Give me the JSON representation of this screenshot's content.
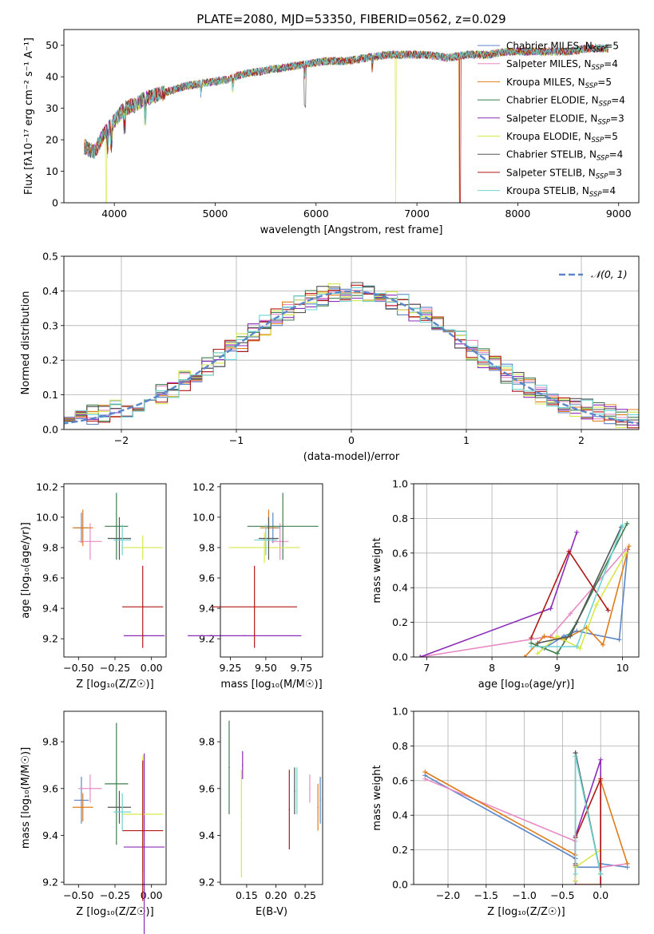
{
  "figure_title": "PLATE=2080, MJD=53350, FIBERID=0562, z=0.029",
  "colors": {
    "Chabrier MILES": "#5b86c8",
    "Salpeter MILES": "#e88bc4",
    "Kroupa MILES": "#e07b1a",
    "Chabrier ELODIE": "#3e7d4e",
    "Salpeter ELODIE": "#8b2cb8",
    "Kroupa ELODIE": "#d8e84a",
    "Chabrier STELIB": "#555555",
    "Salpeter STELIB": "#b01818",
    "Kroupa STELIB": "#6fd3d3"
  },
  "chart_data": [
    {
      "id": "spectrum",
      "type": "line",
      "title": "PLATE=2080, MJD=53350, FIBERID=0562, z=0.029",
      "xlabel": "wavelength [Angstrom, rest frame]",
      "ylabel": "Flux [fλ10⁻¹⁷ erg cm⁻² s⁻¹ A⁻¹]",
      "xlim": [
        3500,
        9200
      ],
      "ylim": [
        0,
        55
      ],
      "xticks": [
        4000,
        5000,
        6000,
        7000,
        8000,
        9000
      ],
      "yticks": [
        0,
        10,
        20,
        30,
        40,
        50
      ],
      "grid": false,
      "legend_position": "top-right",
      "legend": [
        {
          "name": "Chabrier MILES",
          "nssp": "5"
        },
        {
          "name": "Salpeter MILES",
          "nssp": "4"
        },
        {
          "name": "Kroupa MILES",
          "nssp": "5"
        },
        {
          "name": "Chabrier ELODIE",
          "nssp": "4"
        },
        {
          "name": "Salpeter ELODIE",
          "nssp": "3"
        },
        {
          "name": "Kroupa ELODIE",
          "nssp": "5"
        },
        {
          "name": "Chabrier STELIB",
          "nssp": "4"
        },
        {
          "name": "Salpeter STELIB",
          "nssp": "3"
        },
        {
          "name": "Kroupa STELIB",
          "nssp": "4"
        }
      ],
      "x": [
        3700,
        3800,
        3900,
        4000,
        4100,
        4200,
        4300,
        4500,
        4700,
        4900,
        5100,
        5300,
        5500,
        5700,
        5900,
        6100,
        6300,
        6500,
        6700,
        6900,
        7100,
        7300,
        7500,
        7700,
        7900,
        8100,
        8300,
        8500,
        8700,
        8900
      ],
      "y": [
        18,
        16,
        22,
        26,
        30,
        31,
        33,
        35,
        37,
        38,
        39,
        41,
        42,
        43,
        44,
        45,
        45,
        46,
        47,
        47,
        47,
        46,
        47,
        47,
        48,
        48,
        48,
        48,
        49,
        49
      ],
      "dips": [
        {
          "series": "Kroupa ELODIE",
          "x": 3920
        },
        {
          "series": "Kroupa ELODIE",
          "x": 6790
        },
        {
          "series": "Kroupa MILES",
          "x": 7420
        },
        {
          "series": "Salpeter STELIB",
          "x": 7430
        }
      ]
    },
    {
      "id": "residuals",
      "type": "histogram",
      "xlabel": "(data-model)/error",
      "ylabel": "Normed distribution",
      "xlim": [
        -2.5,
        2.5
      ],
      "ylim": [
        0,
        0.5
      ],
      "xticks": [
        -2,
        -1,
        0,
        1,
        2
      ],
      "yticks": [
        0.0,
        0.1,
        0.2,
        0.3,
        0.4,
        0.5
      ],
      "grid": true,
      "legend_position": "top-right",
      "reference_label": "𝒩(0, 1)",
      "bin_width": 0.1
    },
    {
      "id": "age-vs-Z",
      "type": "scatter",
      "xlabel": "Z [log₁₀(Z/Z☉)]",
      "ylabel": "age  [log₁₀(age/yr)]",
      "xlim": [
        -0.6,
        0.1
      ],
      "ylim": [
        9.08,
        10.22
      ],
      "xticks": [
        -0.5,
        -0.25,
        0.0
      ],
      "yticks": [
        9.2,
        9.4,
        9.6,
        9.8,
        10.0,
        10.2
      ],
      "grid": false,
      "points": [
        {
          "series": "Chabrier MILES",
          "x": -0.48,
          "xerr": 0.05,
          "y": 9.93,
          "yerr": 0.1
        },
        {
          "series": "Salpeter MILES",
          "x": -0.42,
          "xerr": 0.08,
          "y": 9.84,
          "yerr": 0.12
        },
        {
          "series": "Kroupa MILES",
          "x": -0.47,
          "xerr": 0.07,
          "y": 9.93,
          "yerr": 0.12
        },
        {
          "series": "Chabrier ELODIE",
          "x": -0.24,
          "xerr": 0.08,
          "y": 9.94,
          "yerr": 0.22
        },
        {
          "series": "Salpeter ELODIE",
          "x": -0.05,
          "xerr": 0.14,
          "y": 9.22,
          "yerr": 0.0
        },
        {
          "series": "Kroupa ELODIE",
          "x": -0.06,
          "xerr": 0.14,
          "y": 9.8,
          "yerr": 0.08
        },
        {
          "series": "Chabrier STELIB",
          "x": -0.22,
          "xerr": 0.08,
          "y": 9.86,
          "yerr": 0.14
        },
        {
          "series": "Salpeter STELIB",
          "x": -0.06,
          "xerr": 0.14,
          "y": 9.41,
          "yerr": 0.27
        },
        {
          "series": "Kroupa STELIB",
          "x": -0.2,
          "xerr": 0.06,
          "y": 9.85,
          "yerr": 0.1
        }
      ]
    },
    {
      "id": "age-vs-mass",
      "type": "scatter",
      "xlabel": "mass [log₁₀(M/M☉)]",
      "ylabel": "",
      "xlim": [
        9.18,
        9.9
      ],
      "ylim": [
        9.08,
        10.22
      ],
      "xticks": [
        9.25,
        9.5,
        9.75
      ],
      "yticks": [
        9.2,
        9.4,
        9.6,
        9.8,
        10.0,
        10.2
      ],
      "grid": false,
      "points": [
        {
          "series": "Chabrier MILES",
          "x": 9.55,
          "xerr": 0.05,
          "y": 9.93,
          "yerr": 0.1
        },
        {
          "series": "Salpeter MILES",
          "x": 9.6,
          "xerr": 0.06,
          "y": 9.84,
          "yerr": 0.12
        },
        {
          "series": "Kroupa MILES",
          "x": 9.52,
          "xerr": 0.06,
          "y": 9.93,
          "yerr": 0.12
        },
        {
          "series": "Chabrier ELODIE",
          "x": 9.62,
          "xerr": 0.25,
          "y": 9.94,
          "yerr": 0.22
        },
        {
          "series": "Salpeter ELODIE",
          "x": 9.35,
          "xerr": 0.4,
          "y": 9.22,
          "yerr": 0.0
        },
        {
          "series": "Kroupa ELODIE",
          "x": 9.49,
          "xerr": 0.25,
          "y": 9.8,
          "yerr": 0.1
        },
        {
          "series": "Chabrier STELIB",
          "x": 9.52,
          "xerr": 0.07,
          "y": 9.86,
          "yerr": 0.14
        },
        {
          "series": "Salpeter STELIB",
          "x": 9.42,
          "xerr": 0.3,
          "y": 9.41,
          "yerr": 0.27
        },
        {
          "series": "Kroupa STELIB",
          "x": 9.5,
          "xerr": 0.08,
          "y": 9.85,
          "yerr": 0.1
        }
      ]
    },
    {
      "id": "weight-vs-age",
      "type": "line",
      "xlabel": "age  [log₁₀(age/yr)]",
      "ylabel": "mass weight",
      "xlim": [
        6.8,
        10.25
      ],
      "ylim": [
        0,
        1
      ],
      "xticks": [
        7,
        8,
        9,
        10
      ],
      "yticks": [
        0.0,
        0.2,
        0.4,
        0.6,
        0.8,
        1.0
      ],
      "grid": true,
      "series": [
        {
          "series": "Chabrier MILES",
          "x": [
            8.8,
            9.1,
            9.3,
            9.95,
            10.08
          ],
          "y": [
            0.05,
            0.12,
            0.15,
            0.1,
            0.62
          ]
        },
        {
          "series": "Salpeter MILES",
          "x": [
            6.9,
            8.9,
            9.2,
            10.05
          ],
          "y": [
            0.0,
            0.12,
            0.25,
            0.62
          ]
        },
        {
          "series": "Kroupa MILES",
          "x": [
            8.5,
            8.8,
            9.1,
            9.45,
            9.7,
            10.1
          ],
          "y": [
            0.0,
            0.12,
            0.1,
            0.17,
            0.07,
            0.64
          ]
        },
        {
          "series": "Chabrier ELODIE",
          "x": [
            8.6,
            9.0,
            9.3,
            10.07
          ],
          "y": [
            0.08,
            0.02,
            0.2,
            0.77
          ]
        },
        {
          "series": "Salpeter ELODIE",
          "x": [
            6.9,
            8.9,
            9.3
          ],
          "y": [
            0.0,
            0.28,
            0.72
          ]
        },
        {
          "series": "Kroupa ELODIE",
          "x": [
            8.7,
            9.0,
            9.35,
            9.6,
            10.05
          ],
          "y": [
            0.02,
            0.12,
            0.05,
            0.3,
            0.6
          ]
        },
        {
          "series": "Chabrier STELIB",
          "x": [
            8.7,
            9.2,
            9.98
          ],
          "y": [
            0.08,
            0.12,
            0.75
          ]
        },
        {
          "series": "Salpeter STELIB",
          "x": [
            8.6,
            9.18,
            9.78
          ],
          "y": [
            0.11,
            0.61,
            0.27
          ]
        },
        {
          "series": "Kroupa STELIB",
          "x": [
            8.6,
            9.3,
            10.0
          ],
          "y": [
            0.06,
            0.06,
            0.76
          ]
        }
      ]
    },
    {
      "id": "mass-vs-Z",
      "type": "scatter",
      "xlabel": "Z [log₁₀(Z/Z☉)]",
      "ylabel": "mass [log₁₀(M/M☉)]",
      "xlim": [
        -0.6,
        0.1
      ],
      "ylim": [
        9.19,
        9.93
      ],
      "xticks": [
        -0.5,
        -0.25,
        0.0
      ],
      "yticks": [
        9.2,
        9.4,
        9.6,
        9.8
      ],
      "grid": false,
      "points": [
        {
          "series": "Chabrier MILES",
          "x": -0.48,
          "xerr": 0.05,
          "y": 9.55,
          "yerr": 0.1
        },
        {
          "series": "Salpeter MILES",
          "x": -0.42,
          "xerr": 0.08,
          "y": 9.6,
          "yerr": 0.06
        },
        {
          "series": "Kroupa MILES",
          "x": -0.47,
          "xerr": 0.07,
          "y": 9.52,
          "yerr": 0.06
        },
        {
          "series": "Chabrier ELODIE",
          "x": -0.24,
          "xerr": 0.08,
          "y": 9.62,
          "yerr": 0.26
        },
        {
          "series": "Salpeter ELODIE",
          "x": -0.05,
          "xerr": 0.14,
          "y": 9.35,
          "yerr": 0.4
        },
        {
          "series": "Kroupa ELODIE",
          "x": -0.06,
          "xerr": 0.14,
          "y": 9.49,
          "yerr": 0.25
        },
        {
          "series": "Chabrier STELIB",
          "x": -0.22,
          "xerr": 0.08,
          "y": 9.52,
          "yerr": 0.07
        },
        {
          "series": "Salpeter STELIB",
          "x": -0.06,
          "xerr": 0.14,
          "y": 9.42,
          "yerr": 0.3
        },
        {
          "series": "Kroupa STELIB",
          "x": -0.2,
          "xerr": 0.06,
          "y": 9.5,
          "yerr": 0.08
        }
      ]
    },
    {
      "id": "mass-vs-ebv",
      "type": "scatter",
      "xlabel": "E(B-V)",
      "ylabel": "",
      "xlim": [
        0.105,
        0.28
      ],
      "ylim": [
        9.19,
        9.93
      ],
      "xticks": [
        0.15,
        0.2,
        0.25
      ],
      "yticks": [
        9.2,
        9.4,
        9.6,
        9.8
      ],
      "grid": false,
      "points": [
        {
          "series": "Chabrier MILES",
          "x": 0.276,
          "xerr": 0.0,
          "y": 9.55,
          "yerr": 0.1
        },
        {
          "series": "Salpeter MILES",
          "x": 0.258,
          "xerr": 0.0,
          "y": 9.6,
          "yerr": 0.06
        },
        {
          "series": "Kroupa MILES",
          "x": 0.272,
          "xerr": 0.0,
          "y": 9.52,
          "yerr": 0.1
        },
        {
          "series": "Chabrier ELODIE",
          "x": 0.12,
          "xerr": 0.0,
          "y": 9.69,
          "yerr": 0.2
        },
        {
          "series": "Salpeter ELODIE",
          "x": 0.143,
          "xerr": 0.0,
          "y": 9.7,
          "yerr": 0.06
        },
        {
          "series": "Kroupa ELODIE",
          "x": 0.141,
          "xerr": 0.0,
          "y": 9.45,
          "yerr": 0.23
        },
        {
          "series": "Chabrier STELIB",
          "x": 0.232,
          "xerr": 0.0,
          "y": 9.59,
          "yerr": 0.1
        },
        {
          "series": "Salpeter STELIB",
          "x": 0.223,
          "xerr": 0.0,
          "y": 9.51,
          "yerr": 0.17
        },
        {
          "series": "Kroupa STELIB",
          "x": 0.236,
          "xerr": 0.0,
          "y": 9.59,
          "yerr": 0.1
        }
      ]
    },
    {
      "id": "weight-vs-Z",
      "type": "line",
      "xlabel": "Z [log₁₀(Z/Z☉)]",
      "ylabel": "mass weight",
      "xlim": [
        -2.45,
        0.5
      ],
      "ylim": [
        0,
        1
      ],
      "xticks": [
        -2.0,
        -1.5,
        -1.0,
        -0.5,
        0.0
      ],
      "yticks": [
        0.0,
        0.2,
        0.4,
        0.6,
        0.8,
        1.0
      ],
      "grid": true,
      "series": [
        {
          "series": "Chabrier MILES",
          "x": [
            -2.3,
            -0.33,
            -0.33,
            0.0,
            0.0,
            0.35
          ],
          "y": [
            0.63,
            0.15,
            0.1,
            0.1,
            0.12,
            0.1
          ]
        },
        {
          "series": "Salpeter MILES",
          "x": [
            -2.3,
            -0.33,
            -0.33,
            0.0,
            0.0,
            0.35
          ],
          "y": [
            0.61,
            0.25,
            0.0,
            0.0,
            0.1,
            0.12
          ]
        },
        {
          "series": "Kroupa MILES",
          "x": [
            -2.3,
            -0.33,
            -0.33,
            0.0,
            0.0,
            0.35
          ],
          "y": [
            0.65,
            0.17,
            0.0,
            0.0,
            0.6,
            0.12
          ]
        },
        {
          "series": "Chabrier ELODIE",
          "x": [
            -0.33,
            -0.33,
            0.0
          ],
          "y": [
            0.02,
            0.76,
            0.06
          ]
        },
        {
          "series": "Salpeter ELODIE",
          "x": [
            -0.33,
            -0.33,
            0.0,
            0.0
          ],
          "y": [
            0.0,
            0.28,
            0.72,
            0.0
          ]
        },
        {
          "series": "Kroupa ELODIE",
          "x": [
            -0.33,
            -0.33,
            0.0,
            0.0
          ],
          "y": [
            0.02,
            0.1,
            0.2,
            0.06
          ]
        },
        {
          "series": "Chabrier STELIB",
          "x": [
            -0.33,
            -0.33,
            0.0
          ],
          "y": [
            0.12,
            0.76,
            0.06
          ]
        },
        {
          "series": "Salpeter STELIB",
          "x": [
            -0.33,
            -0.33,
            0.0,
            0.0
          ],
          "y": [
            0.11,
            0.27,
            0.61,
            0.0
          ]
        },
        {
          "series": "Kroupa STELIB",
          "x": [
            -0.33,
            -0.33,
            0.0
          ],
          "y": [
            0.06,
            0.74,
            0.06
          ]
        }
      ]
    }
  ]
}
